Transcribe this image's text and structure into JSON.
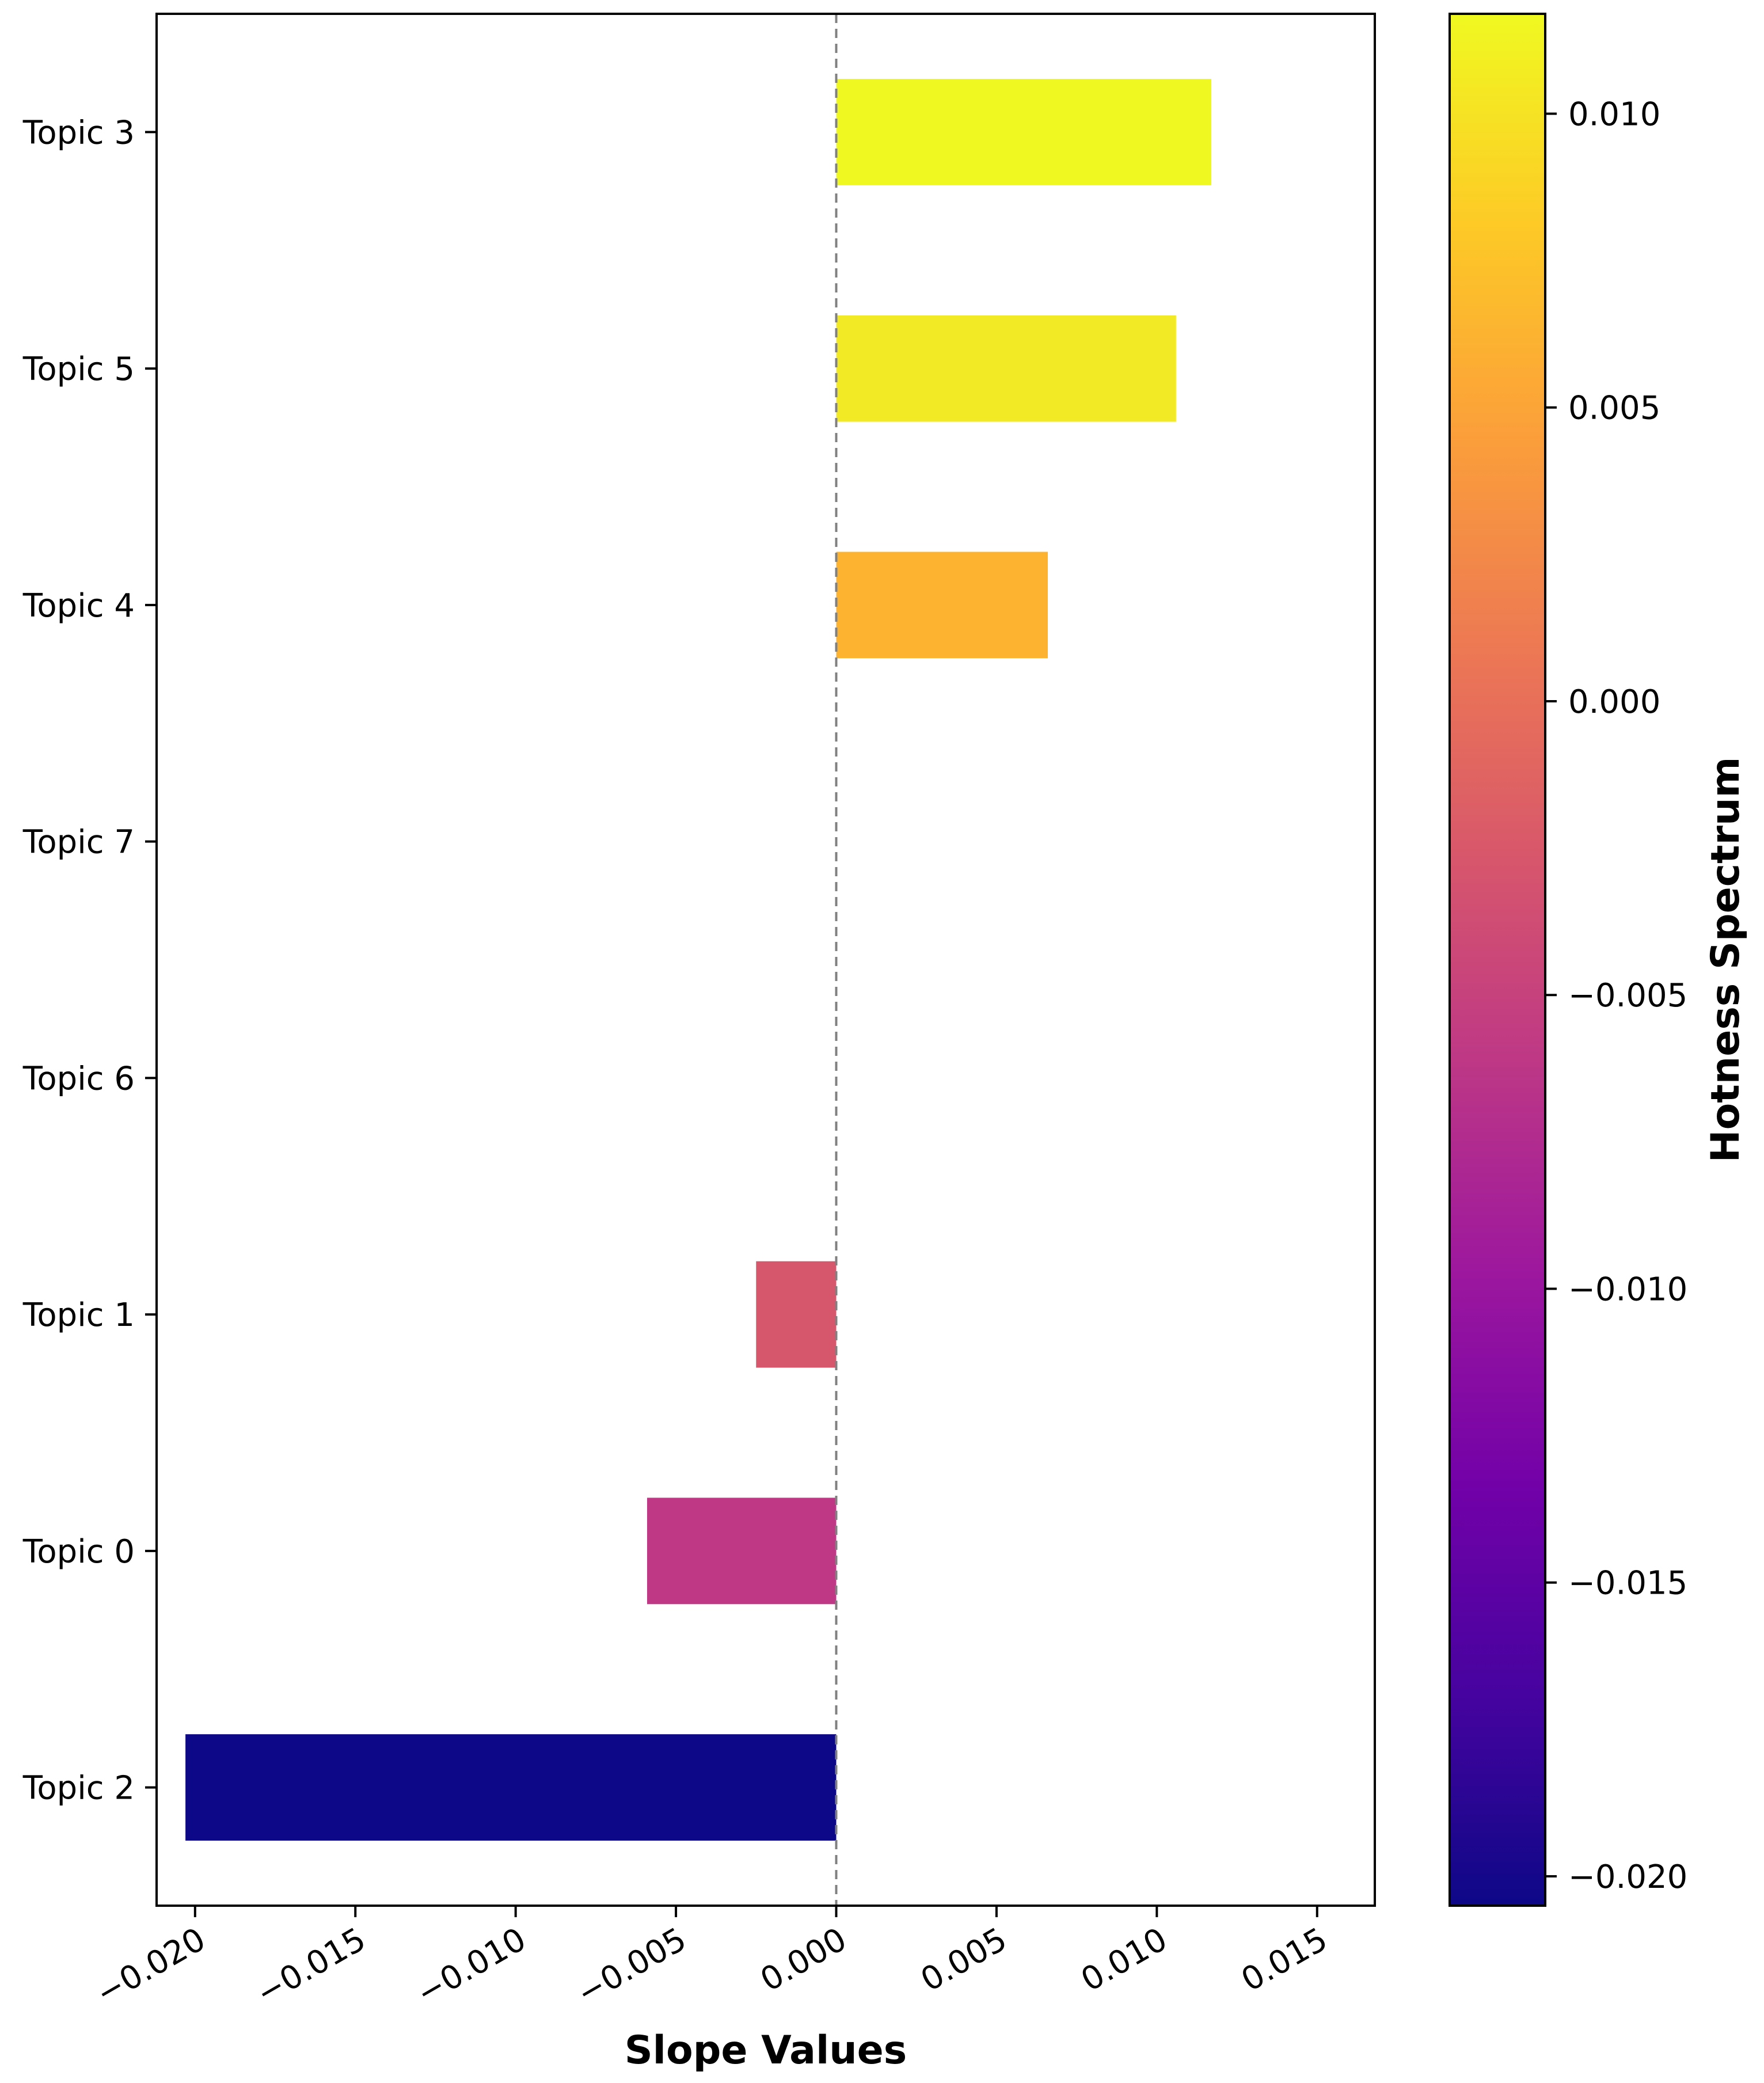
{
  "chart_data": {
    "type": "bar",
    "orientation": "horizontal",
    "title": "",
    "xlabel": "Slope Values",
    "ylabel": "",
    "xlim": [
      -0.0212,
      0.0168
    ],
    "categories": [
      "Topic 3",
      "Topic 5",
      "Topic 4",
      "Topic 7",
      "Topic 6",
      "Topic 1",
      "Topic 0",
      "Topic 2"
    ],
    "values": [
      0.0117,
      0.0106,
      0.0066,
      0.0,
      0.0,
      -0.0025,
      -0.0059,
      -0.0203
    ],
    "bar_colors": [
      "#eff821",
      "#f3ea26",
      "#fdb32f",
      "#ec7853",
      "#ec7853",
      "#d6566c",
      "#be3885",
      "#0d0887"
    ],
    "x_ticks": [
      -0.02,
      -0.015,
      -0.01,
      -0.005,
      0.0,
      0.005,
      0.01,
      0.015
    ],
    "x_tick_labels": [
      "−0.020",
      "−0.015",
      "−0.010",
      "−0.005",
      "0.000",
      "0.005",
      "0.010",
      "0.015"
    ],
    "reference_line": {
      "value": 0.0,
      "style": "dashed",
      "color": "#808080"
    },
    "grid": false,
    "colorbar": {
      "label": "Hotness Spectrum",
      "range": [
        -0.0205,
        0.0117
      ],
      "ticks": [
        0.01,
        0.005,
        0.0,
        -0.005,
        -0.01,
        -0.015,
        -0.02
      ],
      "tick_labels": [
        "0.010",
        "0.005",
        "0.000",
        "−0.005",
        "−0.010",
        "−0.015",
        "−0.020"
      ],
      "colormap": "plasma",
      "stops": [
        "#0d0887",
        "#46039f",
        "#7201a8",
        "#9c179e",
        "#bd3786",
        "#d8576b",
        "#ed7953",
        "#fb9f3a",
        "#fdca26",
        "#f0f921"
      ]
    }
  }
}
